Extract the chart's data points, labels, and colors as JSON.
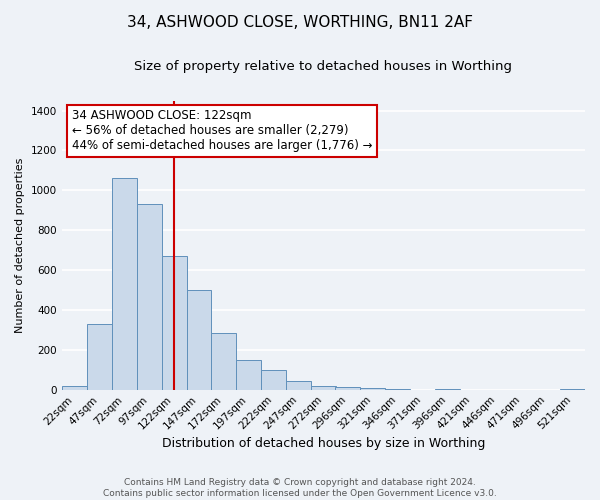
{
  "title": "34, ASHWOOD CLOSE, WORTHING, BN11 2AF",
  "subtitle": "Size of property relative to detached houses in Worthing",
  "xlabel": "Distribution of detached houses by size in Worthing",
  "ylabel": "Number of detached properties",
  "bar_labels": [
    "22sqm",
    "47sqm",
    "72sqm",
    "97sqm",
    "122sqm",
    "147sqm",
    "172sqm",
    "197sqm",
    "222sqm",
    "247sqm",
    "272sqm",
    "296sqm",
    "321sqm",
    "346sqm",
    "371sqm",
    "396sqm",
    "421sqm",
    "446sqm",
    "471sqm",
    "496sqm",
    "521sqm"
  ],
  "bar_values": [
    20,
    330,
    1060,
    930,
    670,
    500,
    285,
    150,
    100,
    42,
    20,
    15,
    10,
    5,
    0,
    2,
    0,
    0,
    0,
    0,
    2
  ],
  "bar_color": "#cad9ea",
  "bar_edgecolor": "#6090bb",
  "vline_color": "#cc0000",
  "vline_x_index": 4,
  "annotation_title": "34 ASHWOOD CLOSE: 122sqm",
  "annotation_line1": "← 56% of detached houses are smaller (2,279)",
  "annotation_line2": "44% of semi-detached houses are larger (1,776) →",
  "annotation_box_facecolor": "#ffffff",
  "annotation_box_edgecolor": "#cc0000",
  "ylim": [
    0,
    1450
  ],
  "yticks": [
    0,
    200,
    400,
    600,
    800,
    1000,
    1200,
    1400
  ],
  "footnote1": "Contains HM Land Registry data © Crown copyright and database right 2024.",
  "footnote2": "Contains public sector information licensed under the Open Government Licence v3.0.",
  "background_color": "#eef2f7",
  "grid_color": "#ffffff",
  "title_fontsize": 11,
  "subtitle_fontsize": 9.5,
  "xlabel_fontsize": 9,
  "ylabel_fontsize": 8,
  "tick_fontsize": 7.5,
  "annotation_fontsize": 8.5,
  "footnote_fontsize": 6.5
}
